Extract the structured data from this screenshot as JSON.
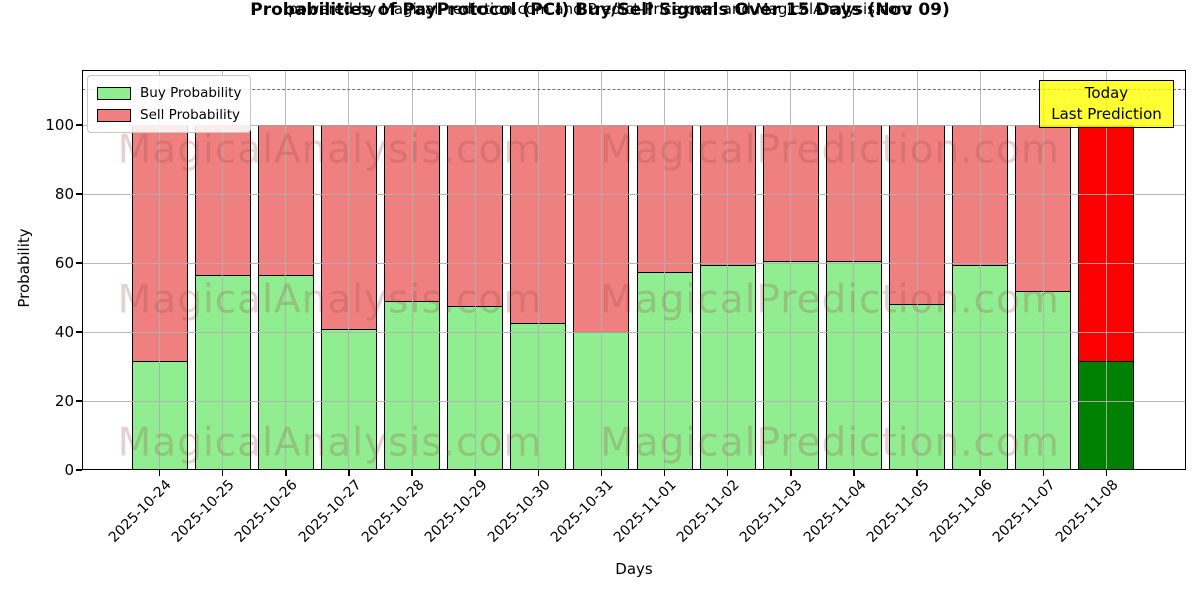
{
  "title": "Probabilities of PayProtocol (PCI) Buy/Sell Signals Over 15 Days (Nov 09)",
  "subtitle": "powered by MagicalPrediction.com and Predict-Price.com and MagicalAnalysis.com",
  "legend": {
    "buy_label": "Buy Probability",
    "sell_label": "Sell Probability"
  },
  "annotation": {
    "line1": "Today",
    "line2": "Last Prediction",
    "background": "#FFFF00",
    "border": "#000000"
  },
  "watermarks": {
    "left_text": "MagicalAnalysis.com",
    "right_text": "MagicalPrediction.com"
  },
  "colors": {
    "buy": "#90EE90",
    "sell": "#F08080",
    "today_buy": "#008000",
    "today_sell": "#FF0000",
    "bar_edge": "#000000",
    "grid": "#B0B0B0"
  },
  "chart_data": {
    "type": "bar",
    "stacked": true,
    "title": "Probabilities of PayProtocol (PCI) Buy/Sell Signals Over 15 Days (Nov 09)",
    "xlabel": "Days",
    "ylabel": "Probability",
    "ylim": [
      0,
      116
    ],
    "yticks": [
      0,
      20,
      40,
      60,
      80,
      100
    ],
    "grid": true,
    "legend_position": "upper left",
    "dashed_line_y": 110.5,
    "categories": [
      "2025-10-24",
      "2025-10-25",
      "2025-10-26",
      "2025-10-27",
      "2025-10-28",
      "2025-10-29",
      "2025-10-30",
      "2025-10-31",
      "2025-11-01",
      "2025-11-02",
      "2025-11-03",
      "2025-11-04",
      "2025-11-05",
      "2025-11-06",
      "2025-11-07",
      "2025-11-08"
    ],
    "series": [
      {
        "name": "Buy Probability",
        "color": "#90EE90",
        "values": [
          31.5,
          56.5,
          56.5,
          41,
          49,
          47.5,
          42.5,
          40,
          57.5,
          59.5,
          60.5,
          60.5,
          48,
          59.5,
          52,
          31.5
        ]
      },
      {
        "name": "Sell Probability",
        "color": "#F08080",
        "values": [
          68.5,
          43.5,
          43.5,
          59,
          51,
          52.5,
          57.5,
          60,
          42.5,
          40.5,
          39.5,
          39.5,
          52,
          40.5,
          48,
          68.5
        ]
      }
    ],
    "today_bar": {
      "category": "2025-11-08",
      "buy_color": "#008000",
      "sell_color": "#FF0000"
    }
  }
}
